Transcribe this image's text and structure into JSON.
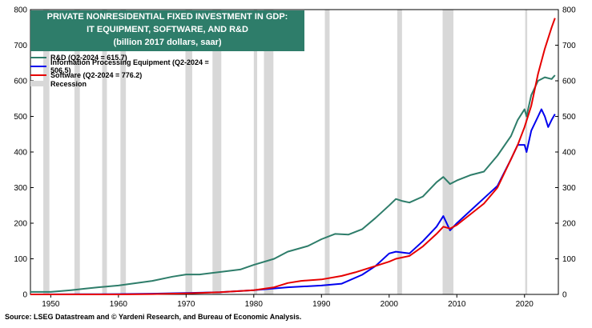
{
  "chart_data": {
    "type": "line",
    "title_lines": [
      "PRIVATE NONRESIDENTIAL FIXED INVESTMENT IN GDP:",
      "IT EQUIPMENT, SOFTWARE, AND R&D",
      "(billion 2017 dollars, saar)"
    ],
    "xlim": [
      1947,
      2025
    ],
    "ylim": [
      0,
      800
    ],
    "x_ticks": [
      1950,
      1960,
      1970,
      1980,
      1990,
      2000,
      2010,
      2020
    ],
    "y_ticks": [
      0,
      100,
      200,
      300,
      400,
      500,
      600,
      700,
      800
    ],
    "recessions": [
      [
        1948.9,
        1949.8
      ],
      [
        1953.5,
        1954.3
      ],
      [
        1957.6,
        1958.3
      ],
      [
        1960.3,
        1961.1
      ],
      [
        1969.9,
        1970.9
      ],
      [
        1973.9,
        1975.2
      ],
      [
        1980.0,
        1980.5
      ],
      [
        1981.5,
        1982.9
      ],
      [
        1990.5,
        1991.2
      ],
      [
        2001.2,
        2001.9
      ],
      [
        2007.9,
        2009.5
      ],
      [
        2020.1,
        2020.4
      ]
    ],
    "series": [
      {
        "name": "R&D",
        "legend": "R&D  (Q2-2024 = 615.7)",
        "color": "#2e7d6a",
        "x": [
          1947,
          1950,
          1953,
          1955,
          1957,
          1960,
          1965,
          1968,
          1970,
          1972,
          1975,
          1978,
          1980,
          1983,
          1985,
          1988,
          1990,
          1992,
          1994,
          1996,
          1998,
          2000,
          2001,
          2002,
          2003,
          2005,
          2007,
          2008,
          2009,
          2010,
          2012,
          2014,
          2016,
          2018,
          2019,
          2020,
          2020.3,
          2021,
          2022,
          2023,
          2024,
          2024.5
        ],
        "values": [
          7,
          7,
          12,
          16,
          20,
          25,
          38,
          50,
          56,
          56,
          63,
          70,
          83,
          100,
          120,
          136,
          155,
          170,
          168,
          183,
          215,
          250,
          268,
          262,
          258,
          275,
          315,
          330,
          310,
          320,
          335,
          345,
          390,
          445,
          490,
          520,
          500,
          560,
          600,
          610,
          605,
          615.7
        ]
      },
      {
        "name": "Information Processing Equipment",
        "legend": "Information Processing Equipment (Q2-2024 = 506.5)",
        "color": "#0000ee",
        "x": [
          1947,
          1955,
          1960,
          1965,
          1970,
          1975,
          1980,
          1985,
          1990,
          1993,
          1996,
          1998,
          2000,
          2001,
          2003,
          2005,
          2007,
          2008,
          2009,
          2010,
          2012,
          2014,
          2016,
          2018,
          2019,
          2020,
          2020.3,
          2021,
          2022,
          2022.5,
          2023,
          2023.5,
          2024,
          2024.5
        ],
        "values": [
          0,
          0.5,
          1,
          2,
          4,
          6,
          12,
          20,
          25,
          30,
          55,
          80,
          115,
          120,
          115,
          150,
          190,
          220,
          180,
          200,
          235,
          270,
          305,
          380,
          420,
          420,
          400,
          460,
          500,
          520,
          500,
          470,
          490,
          506.5
        ]
      },
      {
        "name": "Software",
        "legend": "Software (Q2-2024 = 776.2)",
        "color": "#e60000",
        "x": [
          1947,
          1960,
          1965,
          1970,
          1975,
          1980,
          1983,
          1985,
          1987,
          1990,
          1993,
          1995,
          1998,
          2000,
          2001,
          2003,
          2005,
          2007,
          2008,
          2009,
          2010,
          2012,
          2014,
          2016,
          2018,
          2019,
          2020,
          2021,
          2022,
          2023,
          2024,
          2024.5
        ],
        "values": [
          0,
          0,
          1,
          3,
          6,
          12,
          20,
          32,
          38,
          42,
          52,
          62,
          80,
          92,
          100,
          108,
          135,
          170,
          190,
          185,
          195,
          225,
          255,
          300,
          380,
          420,
          470,
          530,
          620,
          690,
          750,
          776.2
        ]
      }
    ],
    "legend_recession": "Recession",
    "source": "Source: LSEG Datastream and © Yardeni Research, and Bureau of Economic Analysis.",
    "colors": {
      "recession": "#d8d8d8",
      "title_bg": "#2e7d6a"
    }
  }
}
